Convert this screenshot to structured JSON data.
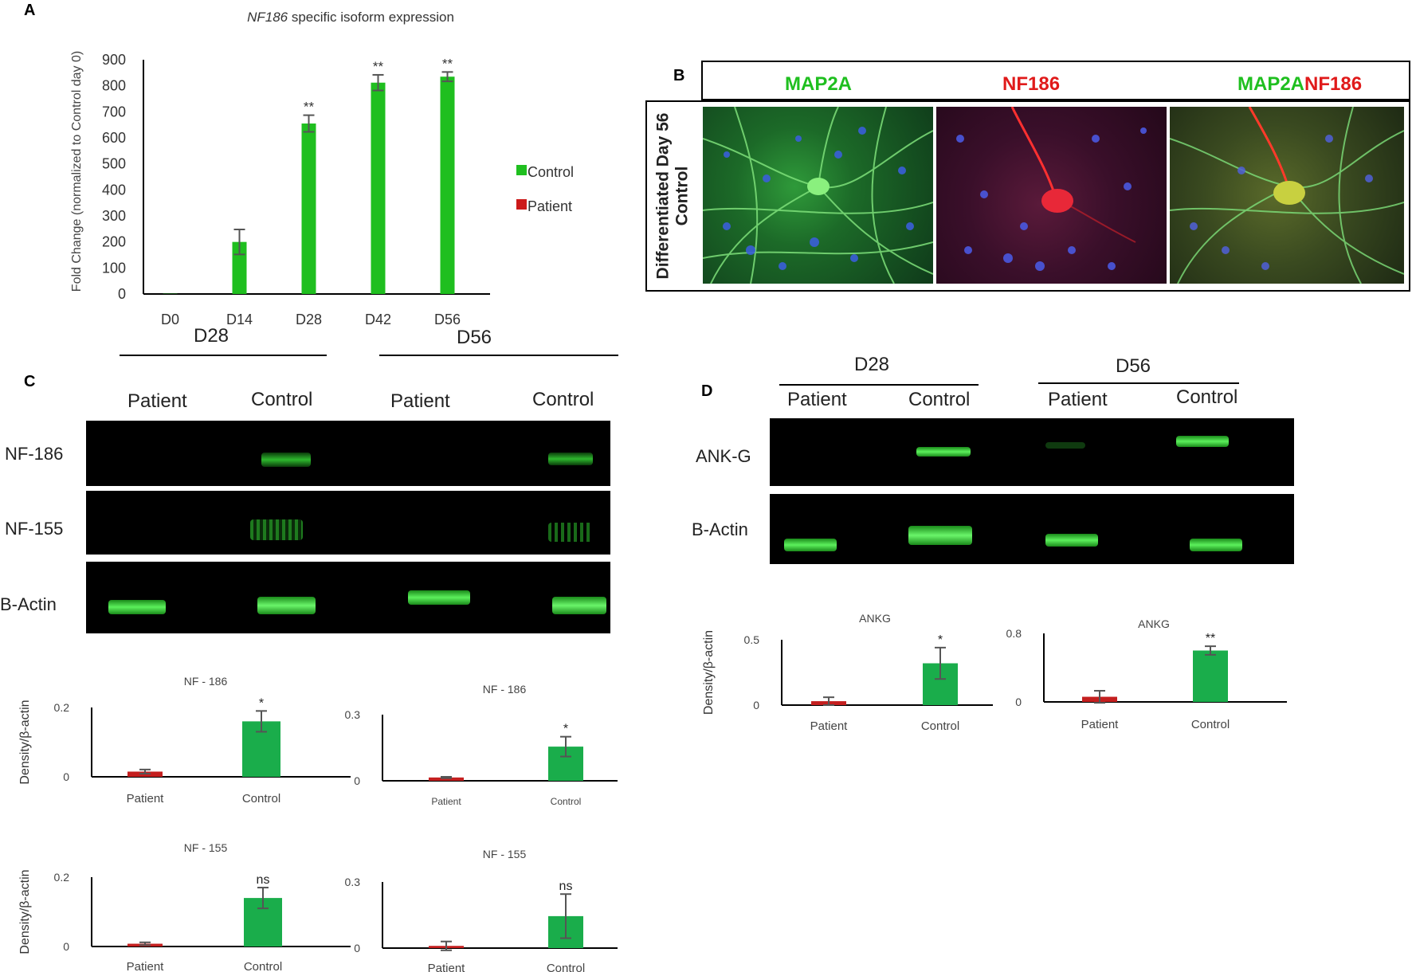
{
  "panel_letters": {
    "a": "A",
    "b": "B",
    "c": "C",
    "d": "D"
  },
  "colors": {
    "control": "#1fbf1f",
    "patient": "#cc1a1a",
    "control_density": "#1aad4b",
    "patient_density": "#c41f1f",
    "map2a": "#1fbf1f",
    "nf186": "#e01a1a"
  },
  "panel_a": {
    "title_italic": "NF186",
    "title_rest": " specific isoform expression",
    "legend": {
      "control": "Control",
      "patient": "Patient"
    }
  },
  "panel_b": {
    "channel_titles": {
      "map2a": "MAP2A",
      "nf186": "NF186",
      "merge_a": "MAP2A",
      "merge_b": "NF186"
    },
    "row_label_1": "Differentiated Day 56",
    "row_label_2": "Control"
  },
  "panel_c": {
    "days": [
      "D28",
      "D56"
    ],
    "lanes": [
      "Patient",
      "Control",
      "Patient",
      "Control"
    ],
    "rows": [
      "NF-186",
      "NF-155",
      "B-Actin"
    ]
  },
  "panel_d": {
    "days": [
      "D28",
      "D56"
    ],
    "lanes": [
      "Patient",
      "Control",
      "Patient",
      "Control"
    ],
    "rows": [
      "ANK-G",
      "B-Actin"
    ]
  },
  "chart_data": [
    {
      "id": "A",
      "type": "bar",
      "title": "NF186 specific isoform expression",
      "ylabel": "Fold Change (normalized to Control day 0)",
      "xlabel": "",
      "categories": [
        "D0",
        "D14",
        "D28",
        "D42",
        "D56"
      ],
      "ylim": [
        0,
        900
      ],
      "yticks": [
        0,
        100,
        200,
        300,
        400,
        500,
        600,
        700,
        800,
        900
      ],
      "series": [
        {
          "name": "Control",
          "values": [
            1,
            200,
            655,
            812,
            835
          ],
          "errors": [
            0,
            48,
            32,
            30,
            18
          ],
          "annotations": [
            "",
            "",
            "**",
            "**",
            "**"
          ]
        },
        {
          "name": "Patient",
          "values": [
            0,
            0,
            0,
            0,
            0
          ]
        }
      ],
      "legend": "right"
    },
    {
      "id": "C-NF186-D28",
      "type": "bar",
      "title": "NF - 186",
      "ylabel": "Density/β-actin",
      "categories": [
        "Patient",
        "Control"
      ],
      "values": [
        0.015,
        0.16
      ],
      "errors": [
        0.006,
        0.03
      ],
      "annotations": [
        "",
        "*"
      ],
      "ylim": [
        0,
        0.2
      ],
      "yticks": [
        0,
        0.2
      ],
      "ytick_labels": [
        "0",
        "0.2"
      ]
    },
    {
      "id": "C-NF186-D56",
      "type": "bar",
      "title": "NF - 186",
      "ylabel": "",
      "categories": [
        "Patient",
        "Control"
      ],
      "values": [
        0.015,
        0.155
      ],
      "errors": [
        0.003,
        0.045
      ],
      "annotations": [
        "",
        "*"
      ],
      "ylim": [
        0,
        0.3
      ],
      "yticks": [
        0,
        0.3
      ],
      "ytick_labels": [
        "0",
        "0.3"
      ]
    },
    {
      "id": "C-NF155-D28",
      "type": "bar",
      "title": "NF - 155",
      "ylabel": "Density/β-actin",
      "categories": [
        "Patient",
        "Control"
      ],
      "values": [
        0.008,
        0.14
      ],
      "errors": [
        0.004,
        0.03
      ],
      "annotations": [
        "",
        "ns"
      ],
      "ylim": [
        0,
        0.2
      ],
      "yticks": [
        0,
        0.2
      ],
      "ytick_labels": [
        "0",
        "0.2"
      ]
    },
    {
      "id": "C-NF155-D56",
      "type": "bar",
      "title": "NF - 155",
      "ylabel": "",
      "categories": [
        "Patient",
        "Control"
      ],
      "values": [
        0.01,
        0.145
      ],
      "errors": [
        0.02,
        0.1
      ],
      "annotations": [
        "",
        "ns"
      ],
      "ylim": [
        0,
        0.3
      ],
      "yticks": [
        0,
        0.3
      ],
      "ytick_labels": [
        "0",
        "0.3"
      ]
    },
    {
      "id": "D-ANKG-D28",
      "type": "bar",
      "title": "ANKG",
      "ylabel": "Density/β-actin",
      "categories": [
        "Patient",
        "Control"
      ],
      "values": [
        0.03,
        0.32
      ],
      "errors": [
        0.03,
        0.12
      ],
      "annotations": [
        "",
        "*"
      ],
      "ylim": [
        0,
        0.5
      ],
      "yticks": [
        0,
        0.5
      ],
      "ytick_labels": [
        "0",
        "0.5"
      ]
    },
    {
      "id": "D-ANKG-D56",
      "type": "bar",
      "title": "ANKG",
      "ylabel": "",
      "categories": [
        "Patient",
        "Control"
      ],
      "values": [
        0.06,
        0.6
      ],
      "errors": [
        0.07,
        0.05
      ],
      "annotations": [
        "",
        "**"
      ],
      "ylim": [
        0,
        0.8
      ],
      "yticks": [
        0,
        0.8
      ],
      "ytick_labels": [
        "0",
        "0.8"
      ]
    }
  ]
}
